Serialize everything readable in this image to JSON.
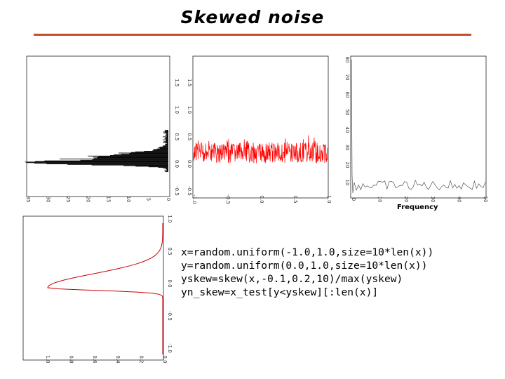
{
  "slide": {
    "title": "Skewed noise",
    "accent_color": "#c1502a",
    "code_lines": [
      "x=random.uniform(-1.0,1.0,size=10*len(x))",
      "y=random.uniform(0.0,1.0,size=10*len(x))",
      "yskew=skew(x,-0.1,0.2,10)/max(yskew)",
      "yn_skew=x_test[y<yskew][:len(x)]"
    ]
  },
  "chart_data": [
    {
      "type": "bar",
      "orientation": "horizontal",
      "color": "#000000",
      "x_ticks": [
        "35",
        "30",
        "25",
        "20",
        "15",
        "10",
        "5",
        "0"
      ],
      "y_ticks": [
        "1.5",
        "1.0",
        "0.5",
        "0.0",
        "-0.5"
      ]
    },
    {
      "type": "line",
      "color": "#ff0000",
      "x_ticks": [
        "-1.0",
        "-0.5",
        "0.0",
        "0.5",
        "1.0"
      ],
      "y_ticks": [
        "1.5",
        "1.0",
        "0.5",
        "0.0",
        "-0.5"
      ]
    },
    {
      "type": "line",
      "color": "#555555",
      "xlabel": "Frequency",
      "x_ticks": [
        "0",
        "10",
        "20",
        "30",
        "40",
        "50"
      ],
      "y_ticks": [
        "80",
        "70",
        "60",
        "50",
        "40",
        "30",
        "20",
        "10"
      ]
    },
    {
      "type": "line",
      "color": "#cc0000",
      "x_ticks": [
        "1.0",
        "0.8",
        "0.6",
        "0.4",
        "0.2",
        "0.0"
      ],
      "y_ticks": [
        "1.0",
        "0.5",
        "0.0",
        "-0.5",
        "-1.0"
      ]
    }
  ]
}
